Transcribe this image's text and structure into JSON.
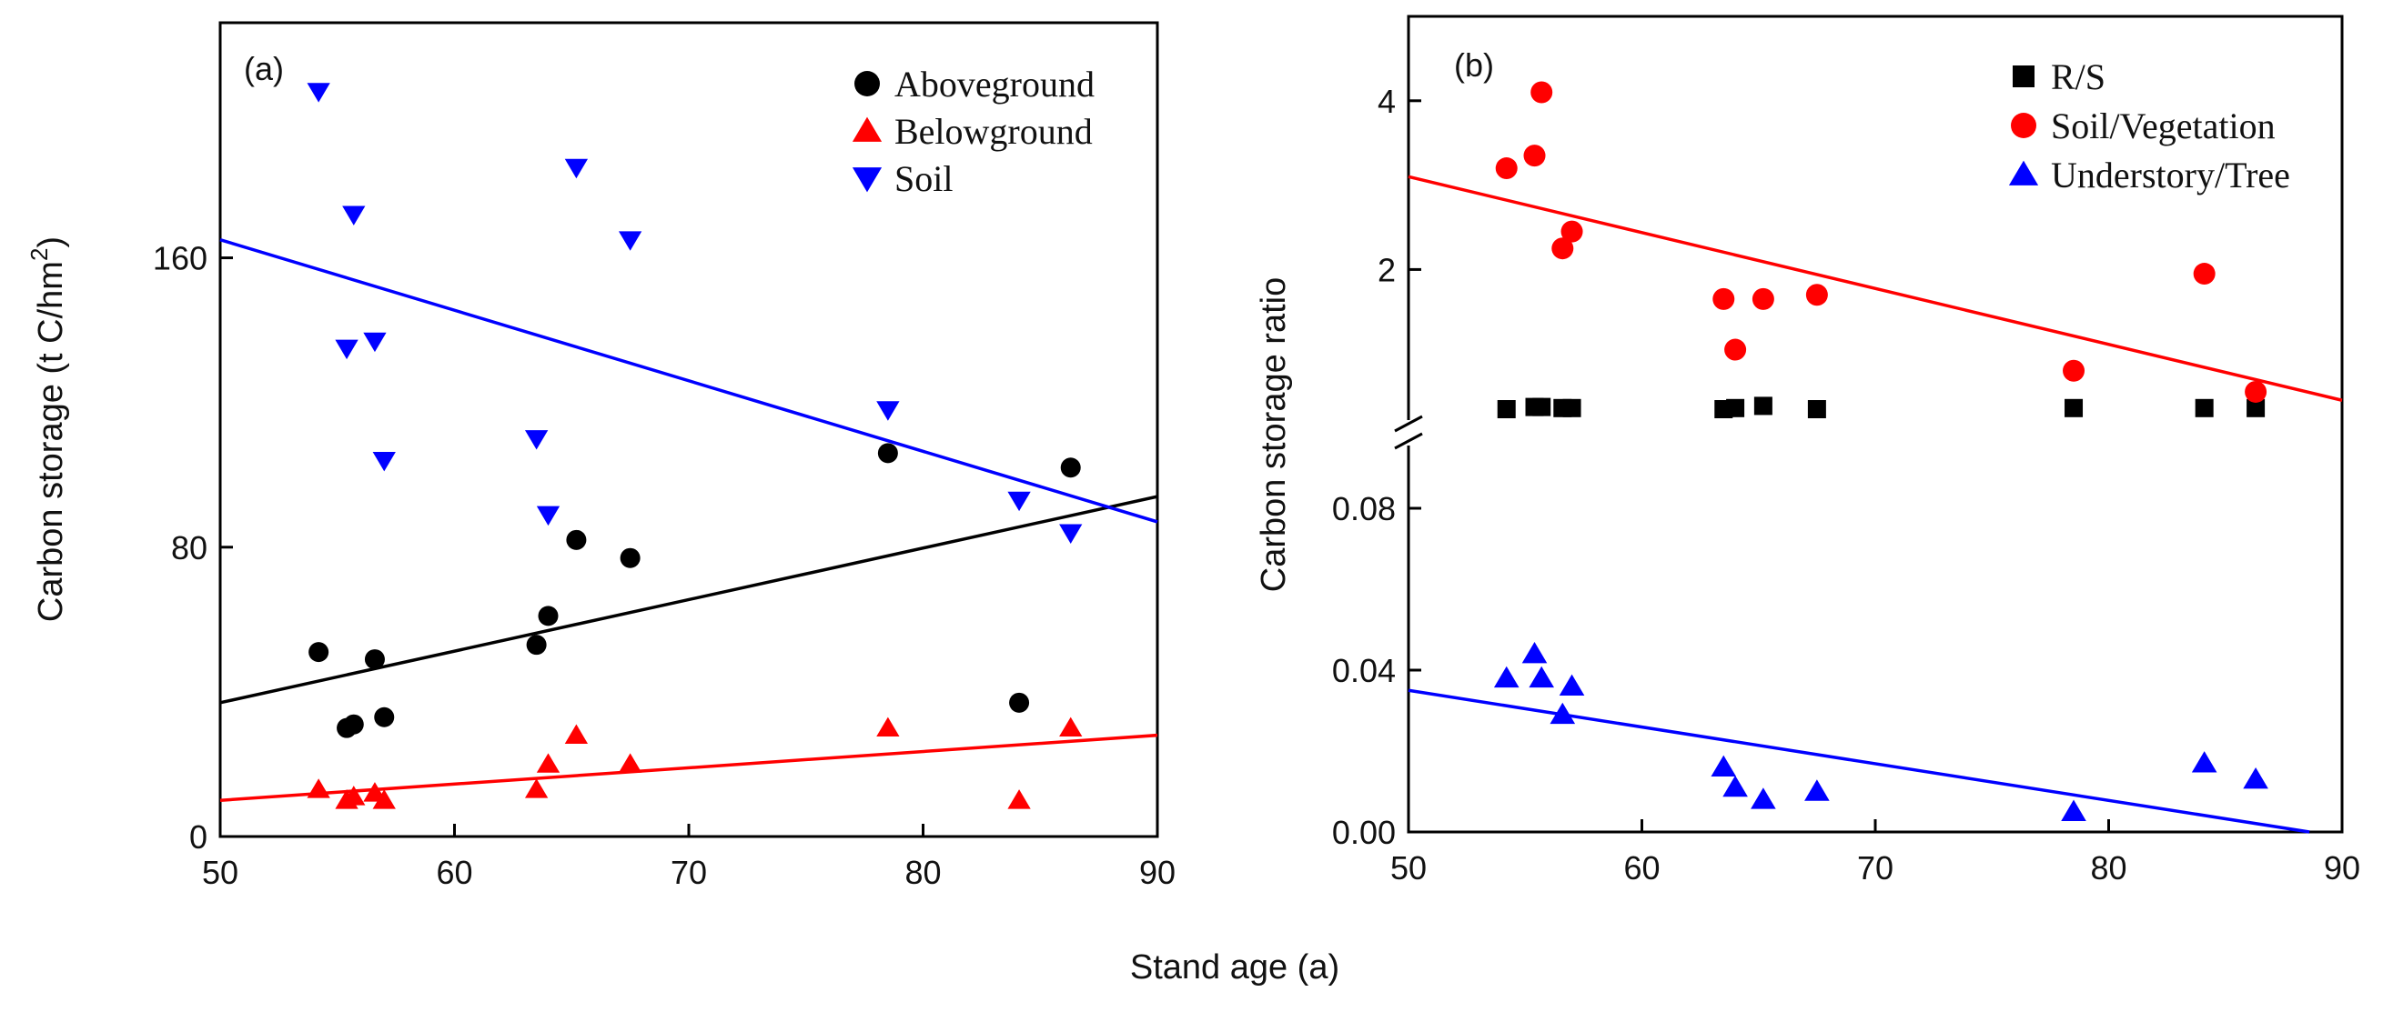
{
  "figure": {
    "shared_xlabel": "Stand age (a)"
  },
  "chart_data": [
    {
      "id": "panel-a",
      "type": "scatter",
      "panel_label": "(a)",
      "title": "",
      "xlabel": "",
      "ylabel": "Carbon storage (t C/hm²)",
      "ylabel_parts": {
        "base": "Carbon storage (t C/hm",
        "sup": "2",
        "close": ")"
      },
      "xlim": [
        50,
        90
      ],
      "ylim": [
        0,
        225
      ],
      "xticks": [
        50,
        60,
        70,
        80,
        90
      ],
      "yticks": [
        0,
        80,
        160
      ],
      "legend_position": "top-right",
      "series": [
        {
          "name": "Aboveground",
          "marker": "circle",
          "color": "#000000",
          "x": [
            54.2,
            55.4,
            55.7,
            56.6,
            57.0,
            63.5,
            64.0,
            65.2,
            67.5,
            78.5,
            84.1,
            86.3
          ],
          "y": [
            51,
            30,
            31,
            49,
            33,
            53,
            61,
            82,
            77,
            106,
            37,
            102
          ],
          "fit": {
            "x": [
              50,
              90
            ],
            "y": [
              37,
              94
            ]
          }
        },
        {
          "name": "Belowground",
          "marker": "triangle-up",
          "color": "#ff0000",
          "x": [
            54.2,
            55.4,
            55.7,
            56.6,
            57.0,
            63.5,
            64.0,
            65.2,
            67.5,
            78.5,
            84.1,
            86.3
          ],
          "y": [
            13,
            10,
            11,
            12,
            10,
            13,
            20,
            28,
            20,
            30,
            10,
            30
          ],
          "fit": {
            "x": [
              50,
              90
            ],
            "y": [
              10,
              28
            ]
          }
        },
        {
          "name": "Soil",
          "marker": "triangle-down",
          "color": "#0000ff",
          "x": [
            54.2,
            55.4,
            55.7,
            56.6,
            57.0,
            63.5,
            64.0,
            65.2,
            67.5,
            78.5,
            84.1,
            86.3
          ],
          "y": [
            206,
            135,
            172,
            137,
            104,
            110,
            89,
            185,
            165,
            118,
            93,
            84
          ],
          "fit": {
            "x": [
              50,
              90
            ],
            "y": [
              165,
              87
            ]
          }
        }
      ]
    },
    {
      "id": "panel-b",
      "type": "scatter",
      "panel_label": "(b)",
      "title": "",
      "xlabel": "",
      "ylabel": "Carbon storage ratio",
      "xlim": [
        50,
        90
      ],
      "broken_y_axis": {
        "lower_range": [
          0,
          0.1
        ],
        "upper_range": [
          0,
          5
        ],
        "lower_ticks": [
          0.0,
          0.04,
          0.08
        ],
        "lower_tick_labels": [
          "0.00",
          "0.04",
          "0.08"
        ],
        "upper_ticks": [
          2,
          4
        ],
        "upper_tick_labels": [
          "2",
          "4"
        ]
      },
      "xticks": [
        50,
        60,
        70,
        80,
        90
      ],
      "legend_position": "top-right",
      "series": [
        {
          "name": "R/S",
          "marker": "square",
          "color": "#000000",
          "axis_segment": "break",
          "x": [
            54.2,
            55.4,
            55.7,
            56.6,
            57.0,
            63.5,
            64.0,
            65.2,
            67.5,
            78.5,
            84.1,
            86.3
          ],
          "y": [
            0.25,
            0.27,
            0.27,
            0.26,
            0.26,
            0.25,
            0.26,
            0.28,
            0.25,
            0.26,
            0.26,
            0.26
          ]
        },
        {
          "name": "Soil/Vegetation",
          "marker": "circle",
          "color": "#ff0000",
          "axis_segment": "upper",
          "x": [
            54.2,
            55.4,
            55.7,
            56.6,
            57.0,
            63.5,
            64.0,
            65.2,
            67.5,
            78.5,
            84.1,
            86.3
          ],
          "y": [
            3.2,
            3.35,
            4.1,
            2.25,
            2.45,
            1.65,
            1.05,
            1.65,
            1.7,
            0.8,
            1.95,
            0.55
          ],
          "fit": {
            "x": [
              50,
              90
            ],
            "y": [
              3.1,
              0.45
            ]
          }
        },
        {
          "name": "Understory/Tree",
          "marker": "triangle-up",
          "color": "#0000ff",
          "axis_segment": "lower",
          "x": [
            54.2,
            55.4,
            55.7,
            56.6,
            57.0,
            63.5,
            64.0,
            65.2,
            67.5,
            78.5,
            84.1,
            86.3
          ],
          "y": [
            0.038,
            0.044,
            0.038,
            0.029,
            0.036,
            0.016,
            0.011,
            0.008,
            0.01,
            0.005,
            0.017,
            0.013
          ],
          "fit": {
            "x": [
              50,
              88.6
            ],
            "y": [
              0.035,
              0.0
            ]
          }
        }
      ]
    }
  ]
}
